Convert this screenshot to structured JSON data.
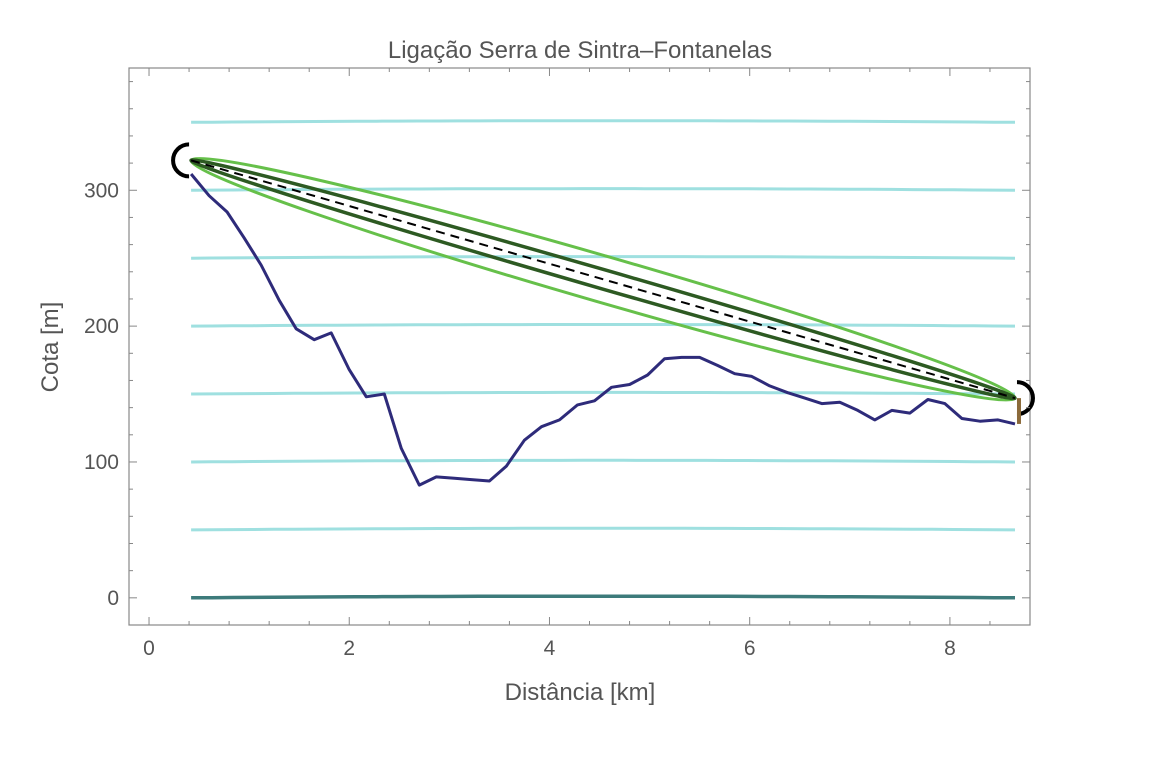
{
  "chart_data": {
    "type": "line",
    "title": "Ligação Serra de Sintra–Fontanelas",
    "xlabel": "Distância [km]",
    "ylabel": "Cota [m]",
    "xlim": [
      -0.2,
      8.8
    ],
    "ylim": [
      -20,
      390
    ],
    "x_ticks": [
      0,
      2,
      4,
      6,
      8
    ],
    "y_ticks": [
      0,
      100,
      200,
      300
    ],
    "grid": false,
    "colors": {
      "frame": "#888888",
      "tick_label": "#555555",
      "contour": "#9fe0e0",
      "sea_level": "#3d7b7b",
      "terrain": "#2e2b7a",
      "fresnel": "#66c04a",
      "beam": "#2d5a22",
      "line_of_sight": "#000000",
      "endpoint": "#8b6a3a"
    },
    "series": [
      {
        "role": "terrain",
        "x": [
          0.42,
          0.6,
          0.78,
          0.95,
          1.12,
          1.3,
          1.47,
          1.65,
          1.82,
          2.0,
          2.17,
          2.35,
          2.52,
          2.7,
          2.87,
          3.05,
          3.22,
          3.4,
          3.57,
          3.75,
          3.92,
          4.1,
          4.28,
          4.45,
          4.62,
          4.8,
          4.98,
          5.15,
          5.32,
          5.5,
          5.68,
          5.85,
          6.02,
          6.2,
          6.38,
          6.55,
          6.72,
          6.9,
          7.08,
          7.25,
          7.42,
          7.6,
          7.78,
          7.95,
          8.12,
          8.3,
          8.48,
          8.65
        ],
        "y": [
          312,
          296,
          284,
          265,
          245,
          219,
          198,
          190,
          195,
          168,
          148,
          150,
          110,
          83,
          89,
          88,
          87,
          86,
          97,
          116,
          126,
          131,
          142,
          145,
          155,
          157,
          164,
          176,
          177,
          177,
          171,
          165,
          163,
          156,
          151,
          147,
          143,
          144,
          138,
          131,
          138,
          136,
          146,
          143,
          132,
          130,
          131,
          128
        ]
      },
      {
        "role": "line_of_sight",
        "x": [
          0.42,
          8.65
        ],
        "y": [
          322,
          147
        ]
      }
    ],
    "contour_levels": [
      0,
      50,
      100,
      150,
      200,
      250,
      300,
      350
    ],
    "fresnel_zone": {
      "endpoints": [
        [
          0.42,
          322
        ],
        [
          8.65,
          147
        ]
      ],
      "outer_semi_axis_m": 17,
      "inner_semi_axis_m": 7
    }
  }
}
